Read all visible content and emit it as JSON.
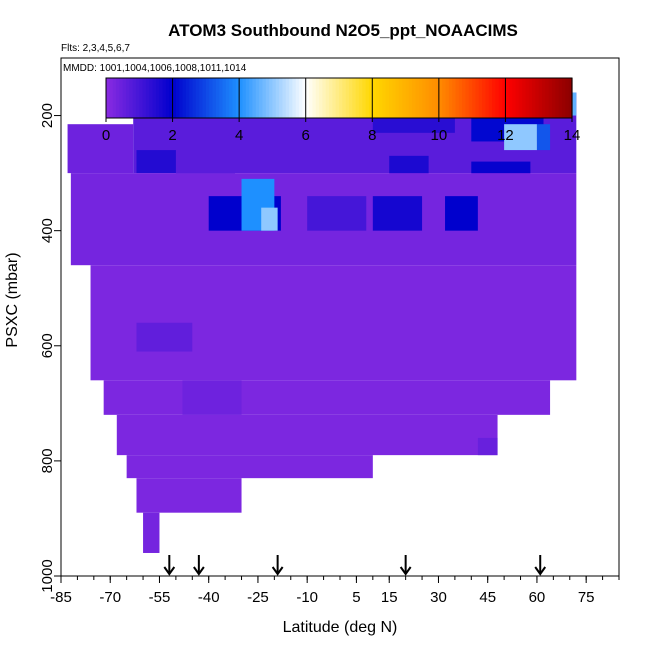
{
  "chart_data": {
    "type": "heatmap",
    "title": "ATOM3 Southbound N2O5_ppt_NOAACIMS",
    "flights_note": "Flts: 2,3,4,5,6,7",
    "dates_note": "MMDD: 1001,1004,1006,1008,1011,1014",
    "xlabel": "Latitude (deg N)",
    "ylabel": "PSXC (mbar)",
    "xlim": [
      -85,
      85
    ],
    "ylim": [
      1000,
      100
    ],
    "y_reversed": true,
    "x_ticks": [
      -85,
      -70,
      -55,
      -40,
      -25,
      -10,
      5,
      15,
      30,
      45,
      60,
      75
    ],
    "y_ticks": [
      200,
      400,
      600,
      800,
      1000
    ],
    "colorbar": {
      "min": 0,
      "max": 14,
      "ticks": [
        0,
        2,
        4,
        6,
        8,
        10,
        12,
        14
      ],
      "colors": [
        "#8a2be2",
        "#0000cd",
        "#1e90ff",
        "#ffffff",
        "#ffd700",
        "#ff8c00",
        "#ff0000",
        "#8b0000"
      ]
    },
    "arrow_latitudes": [
      -52,
      -43,
      -19,
      20,
      61
    ],
    "cells": [
      {
        "x0": -63,
        "x1": 72,
        "p0": 160,
        "p1": 300,
        "v": 0.7
      },
      {
        "x0": -63,
        "x1": -45,
        "p0": 160,
        "p1": 195,
        "v": 2.0
      },
      {
        "x0": -45,
        "x1": 10,
        "p0": 160,
        "p1": 200,
        "v": 1.7
      },
      {
        "x0": 10,
        "x1": 40,
        "p0": 160,
        "p1": 200,
        "v": 1.9
      },
      {
        "x0": 40,
        "x1": 65,
        "p0": 160,
        "p1": 200,
        "v": 2.0
      },
      {
        "x0": 65,
        "x1": 72,
        "p0": 160,
        "p1": 200,
        "v": 4.6
      },
      {
        "x0": 10,
        "x1": 35,
        "p0": 200,
        "p1": 230,
        "v": 1.4
      },
      {
        "x0": 40,
        "x1": 62,
        "p0": 200,
        "p1": 245,
        "v": 2.1
      },
      {
        "x0": 50,
        "x1": 60,
        "p0": 215,
        "p1": 260,
        "v": 5.0
      },
      {
        "x0": 60,
        "x1": 64,
        "p0": 215,
        "p1": 260,
        "v": 3.2
      },
      {
        "x0": -83,
        "x1": -63,
        "p0": 215,
        "p1": 300,
        "v": 0.4
      },
      {
        "x0": 40,
        "x1": 58,
        "p0": 280,
        "p1": 330,
        "v": 1.9
      },
      {
        "x0": 15,
        "x1": 27,
        "p0": 270,
        "p1": 330,
        "v": 1.6
      },
      {
        "x0": -50,
        "x1": -32,
        "p0": 300,
        "p1": 350,
        "v": 1.8
      },
      {
        "x0": -62,
        "x1": -50,
        "p0": 260,
        "p1": 300,
        "v": 1.5
      },
      {
        "x0": -82,
        "x1": 72,
        "p0": 300,
        "p1": 460,
        "v": 0.3
      },
      {
        "x0": -40,
        "x1": -18,
        "p0": 340,
        "p1": 400,
        "v": 2.0
      },
      {
        "x0": -30,
        "x1": -20,
        "p0": 310,
        "p1": 400,
        "v": 4.0
      },
      {
        "x0": -24,
        "x1": -19,
        "p0": 360,
        "p1": 400,
        "v": 5.0
      },
      {
        "x0": 10,
        "x1": 25,
        "p0": 340,
        "p1": 400,
        "v": 1.7
      },
      {
        "x0": 32,
        "x1": 42,
        "p0": 340,
        "p1": 400,
        "v": 2.0
      },
      {
        "x0": -10,
        "x1": 8,
        "p0": 340,
        "p1": 400,
        "v": 1.0
      },
      {
        "x0": -76,
        "x1": 72,
        "p0": 460,
        "p1": 660,
        "v": 0.2
      },
      {
        "x0": -62,
        "x1": -45,
        "p0": 560,
        "p1": 610,
        "v": 0.6
      },
      {
        "x0": -72,
        "x1": 64,
        "p0": 660,
        "p1": 720,
        "v": 0.2
      },
      {
        "x0": -48,
        "x1": -30,
        "p0": 660,
        "p1": 720,
        "v": 0.4
      },
      {
        "x0": -68,
        "x1": 48,
        "p0": 720,
        "p1": 790,
        "v": 0.2
      },
      {
        "x0": 42,
        "x1": 48,
        "p0": 760,
        "p1": 790,
        "v": 0.5
      },
      {
        "x0": -65,
        "x1": 10,
        "p0": 790,
        "p1": 830,
        "v": 0.2
      },
      {
        "x0": -62,
        "x1": -30,
        "p0": 830,
        "p1": 890,
        "v": 0.2
      },
      {
        "x0": -60,
        "x1": -55,
        "p0": 890,
        "p1": 960,
        "v": 0.3
      }
    ]
  }
}
